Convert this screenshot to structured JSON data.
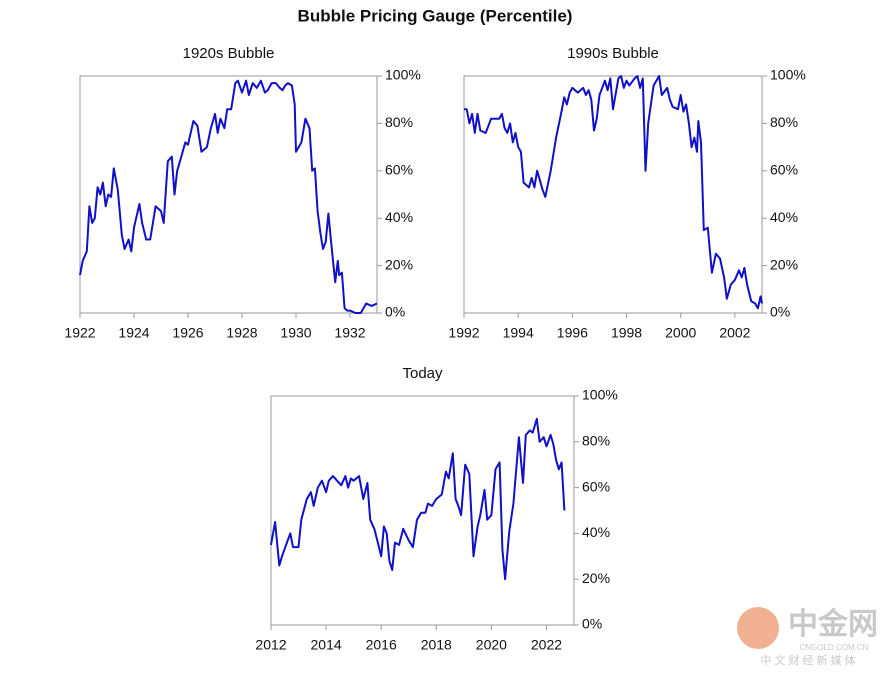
{
  "title": "Bubble Pricing Gauge (Percentile)",
  "watermark": {
    "logo": "中金网",
    "site": "CNGOLD.COM.CN",
    "tagline": "中 文 财 经 新 媒 体"
  },
  "chart_data": [
    {
      "type": "line",
      "title": "1920s Bubble",
      "color": "#1010c8",
      "x": [
        1922.0,
        1922.1,
        1922.25,
        1922.35,
        1922.45,
        1922.55,
        1922.65,
        1922.75,
        1922.85,
        1922.95,
        1923.05,
        1923.15,
        1923.25,
        1923.4,
        1923.55,
        1923.65,
        1923.8,
        1923.9,
        1924.0,
        1924.2,
        1924.3,
        1924.45,
        1924.6,
        1924.8,
        1925.0,
        1925.1,
        1925.25,
        1925.4,
        1925.5,
        1925.6,
        1925.75,
        1925.9,
        1926.0,
        1926.2,
        1926.35,
        1926.5,
        1926.7,
        1926.85,
        1927.0,
        1927.1,
        1927.2,
        1927.35,
        1927.45,
        1927.6,
        1927.75,
        1927.85,
        1928.0,
        1928.15,
        1928.25,
        1928.4,
        1928.55,
        1928.7,
        1928.85,
        1928.95,
        1929.1,
        1929.25,
        1929.4,
        1929.5,
        1929.6,
        1929.7,
        1929.85,
        1929.95,
        1930.0,
        1930.2,
        1930.35,
        1930.5,
        1930.6,
        1930.7,
        1930.8,
        1930.9,
        1931.0,
        1931.1,
        1931.2,
        1931.3,
        1931.45,
        1931.55,
        1931.6,
        1931.7,
        1931.8,
        1931.9,
        1932.0,
        1932.2,
        1932.4,
        1932.6,
        1932.8,
        1933.0
      ],
      "values": [
        16,
        22,
        26,
        45,
        38,
        40,
        53,
        50,
        55,
        45,
        50,
        49,
        61,
        52,
        33,
        27,
        31,
        26,
        36,
        46,
        38,
        31,
        31,
        45,
        43,
        38,
        64,
        66,
        50,
        60,
        66,
        72,
        71,
        81,
        79,
        68,
        70,
        78,
        84,
        76,
        82,
        78,
        86,
        86,
        97,
        98,
        93,
        98,
        92,
        97,
        95,
        98,
        93,
        94,
        97,
        97,
        95,
        94,
        96,
        97,
        96,
        88,
        68,
        72,
        82,
        78,
        60,
        61,
        43,
        34,
        27,
        30,
        42,
        30,
        13,
        22,
        16,
        17,
        2,
        1,
        1,
        0,
        0,
        4,
        3,
        4
      ],
      "xlim": [
        1922,
        1933
      ],
      "xticks": [
        1922,
        1924,
        1926,
        1928,
        1930,
        1932
      ],
      "ylim": [
        0,
        100
      ],
      "yticks": [
        {
          "value": 0,
          "label": "0%"
        },
        {
          "value": 20,
          "label": "20%"
        },
        {
          "value": 40,
          "label": "40%"
        },
        {
          "value": 60,
          "label": "60%"
        },
        {
          "value": 80,
          "label": "80%"
        },
        {
          "value": 100,
          "label": "100%"
        }
      ]
    },
    {
      "type": "line",
      "title": "1990s Bubble",
      "color": "#1010c8",
      "x": [
        1992.0,
        1992.1,
        1992.2,
        1992.3,
        1992.4,
        1992.5,
        1992.6,
        1992.8,
        1993.0,
        1993.3,
        1993.4,
        1993.5,
        1993.6,
        1993.7,
        1993.8,
        1993.9,
        1994.0,
        1994.1,
        1994.2,
        1994.3,
        1994.4,
        1994.5,
        1994.6,
        1994.7,
        1994.8,
        1994.9,
        1995.0,
        1995.2,
        1995.4,
        1995.6,
        1995.7,
        1995.8,
        1995.9,
        1996.0,
        1996.2,
        1996.4,
        1996.5,
        1996.6,
        1996.7,
        1996.8,
        1996.9,
        1997.0,
        1997.2,
        1997.3,
        1997.4,
        1997.5,
        1997.7,
        1997.8,
        1997.9,
        1998.0,
        1998.1,
        1998.3,
        1998.4,
        1998.5,
        1998.6,
        1998.7,
        1998.8,
        1999.0,
        1999.2,
        1999.3,
        1999.5,
        1999.6,
        1999.7,
        1999.9,
        2000.0,
        2000.1,
        2000.2,
        2000.3,
        2000.4,
        2000.5,
        2000.6,
        2000.65,
        2000.75,
        2000.85,
        2001.0,
        2001.15,
        2001.3,
        2001.45,
        2001.6,
        2001.7,
        2001.85,
        2002.0,
        2002.15,
        2002.25,
        2002.35,
        2002.45,
        2002.6,
        2002.75,
        2002.85,
        2002.95,
        2003.0
      ],
      "values": [
        86,
        86,
        80,
        84,
        76,
        84,
        77,
        76,
        82,
        82,
        84,
        78,
        76,
        80,
        72,
        76,
        70,
        68,
        55,
        54,
        53,
        57,
        53,
        60,
        56,
        52,
        49,
        60,
        74,
        85,
        91,
        88,
        93,
        95,
        93,
        95,
        92,
        94,
        90,
        77,
        82,
        92,
        98,
        94,
        99,
        86,
        99,
        100,
        95,
        98,
        96,
        99,
        100,
        95,
        99,
        60,
        80,
        96,
        100,
        92,
        95,
        90,
        87,
        86,
        92,
        85,
        88,
        80,
        70,
        74,
        68,
        81,
        72,
        35,
        36,
        17,
        25,
        23,
        15,
        6,
        12,
        14,
        18,
        15,
        19,
        12,
        5,
        4,
        2,
        7,
        4
      ],
      "xlim": [
        1992,
        2003
      ],
      "xticks": [
        1992,
        1994,
        1996,
        1998,
        2000,
        2002
      ],
      "ylim": [
        0,
        100
      ],
      "yticks": [
        {
          "value": 0,
          "label": "0%"
        },
        {
          "value": 20,
          "label": "20%"
        },
        {
          "value": 40,
          "label": "40%"
        },
        {
          "value": 60,
          "label": "60%"
        },
        {
          "value": 80,
          "label": "80%"
        },
        {
          "value": 100,
          "label": "100%"
        }
      ]
    },
    {
      "type": "line",
      "title": "Today",
      "color": "#1010c8",
      "x": [
        2012.0,
        2012.15,
        2012.3,
        2012.4,
        2012.55,
        2012.7,
        2012.8,
        2013.0,
        2013.1,
        2013.3,
        2013.45,
        2013.55,
        2013.7,
        2013.85,
        2014.0,
        2014.1,
        2014.25,
        2014.4,
        2014.55,
        2014.7,
        2014.8,
        2014.9,
        2015.0,
        2015.2,
        2015.35,
        2015.5,
        2015.6,
        2015.75,
        2015.9,
        2016.0,
        2016.1,
        2016.2,
        2016.3,
        2016.4,
        2016.5,
        2016.65,
        2016.8,
        2017.0,
        2017.15,
        2017.3,
        2017.45,
        2017.6,
        2017.7,
        2017.85,
        2018.0,
        2018.2,
        2018.35,
        2018.45,
        2018.6,
        2018.7,
        2018.8,
        2018.9,
        2019.05,
        2019.2,
        2019.35,
        2019.5,
        2019.6,
        2019.75,
        2019.85,
        2020.0,
        2020.15,
        2020.3,
        2020.4,
        2020.5,
        2020.65,
        2020.8,
        2021.0,
        2021.15,
        2021.25,
        2021.4,
        2021.5,
        2021.65,
        2021.75,
        2021.9,
        2022.0,
        2022.15,
        2022.25,
        2022.35,
        2022.45,
        2022.55,
        2022.65
      ],
      "values": [
        35,
        45,
        26,
        30,
        35,
        40,
        34,
        34,
        46,
        55,
        58,
        52,
        60,
        63,
        58,
        63,
        65,
        63,
        61,
        65,
        60,
        64,
        63,
        65,
        55,
        62,
        46,
        42,
        35,
        30,
        43,
        40,
        28,
        24,
        36,
        35,
        42,
        37,
        34,
        46,
        49,
        49,
        53,
        52,
        55,
        57,
        67,
        64,
        75,
        55,
        52,
        48,
        70,
        66,
        30,
        43,
        48,
        59,
        46,
        48,
        68,
        71,
        33,
        20,
        41,
        53,
        82,
        62,
        83,
        85,
        84,
        90,
        80,
        82,
        78,
        83,
        79,
        72,
        68,
        71,
        50
      ],
      "xlim": [
        2012,
        2023
      ],
      "xticks": [
        2012,
        2014,
        2016,
        2018,
        2020,
        2022
      ],
      "ylim": [
        0,
        100
      ],
      "yticks": [
        {
          "value": 0,
          "label": "0%"
        },
        {
          "value": 20,
          "label": "20%"
        },
        {
          "value": 40,
          "label": "40%"
        },
        {
          "value": 60,
          "label": "60%"
        },
        {
          "value": 80,
          "label": "80%"
        },
        {
          "value": 100,
          "label": "100%"
        }
      ]
    }
  ]
}
